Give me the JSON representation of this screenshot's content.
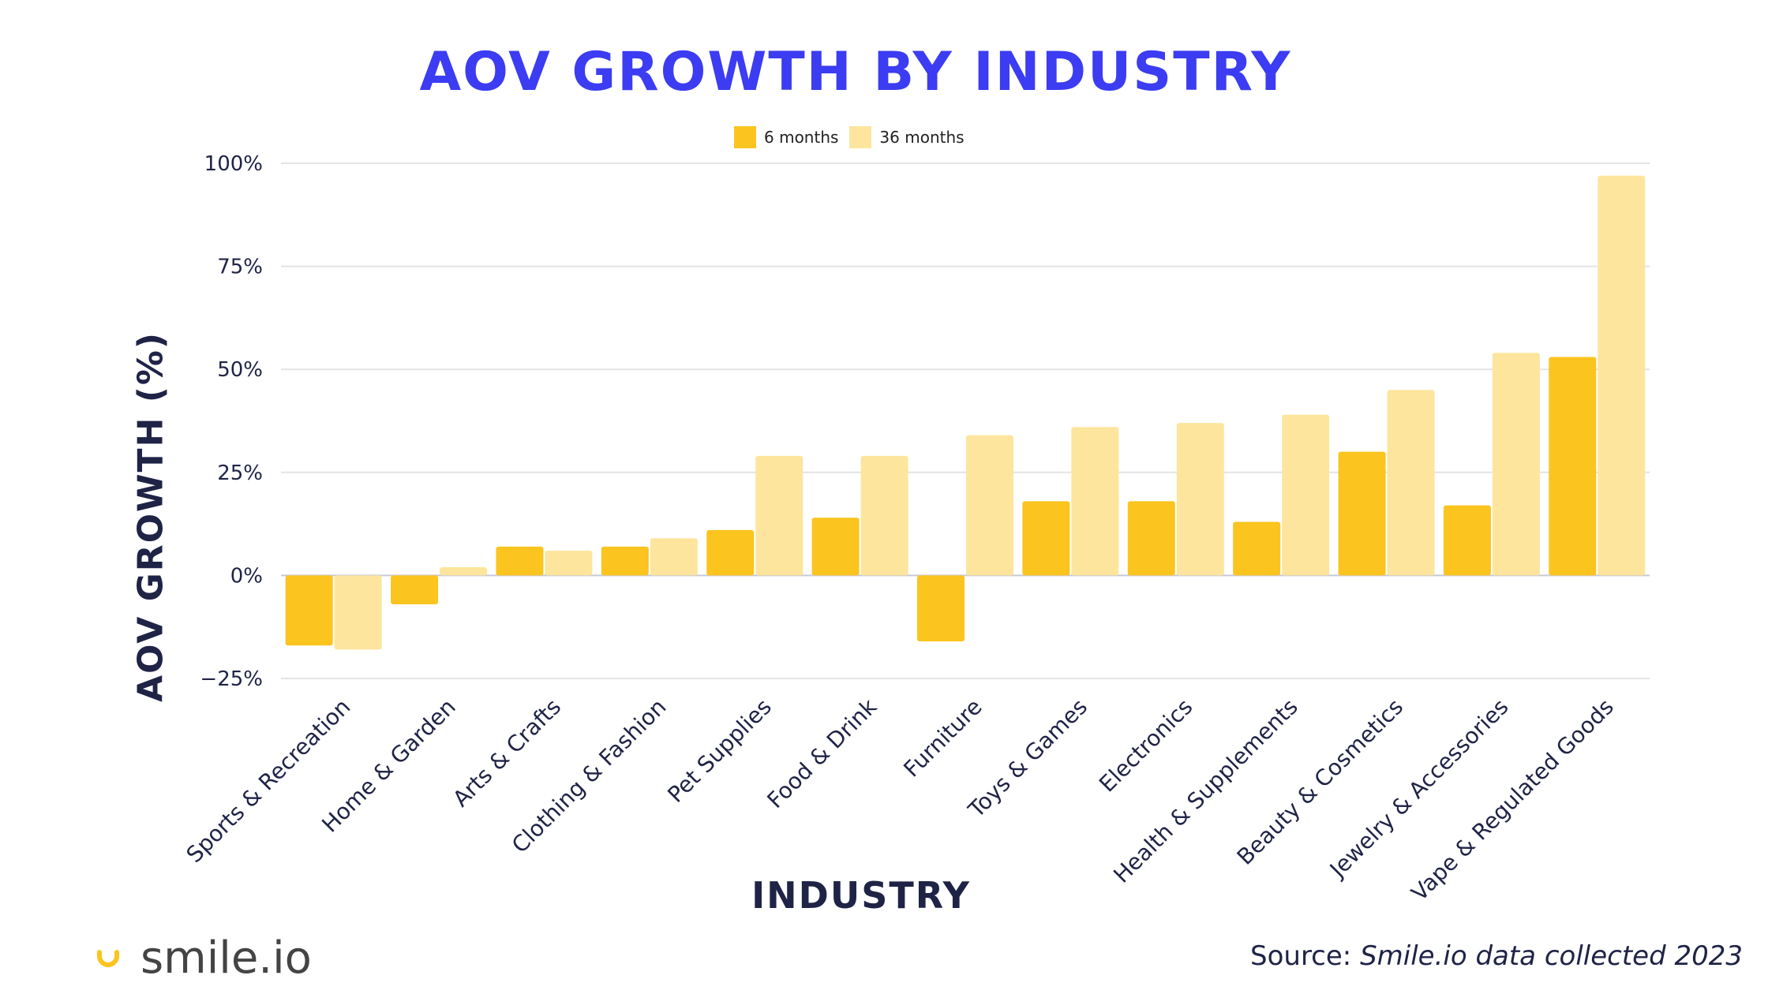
{
  "chart_data": {
    "type": "bar",
    "title": "AOV GROWTH BY INDUSTRY",
    "xlabel": "INDUSTRY",
    "ylabel": "AOV GROWTH (%)",
    "ylim": [
      -25,
      100
    ],
    "yticks": [
      "100%",
      "75%",
      "50%",
      "25%",
      "0%",
      "−25%"
    ],
    "ytick_values": [
      100,
      75,
      50,
      25,
      0,
      -25
    ],
    "grid": true,
    "legend_position": "top-center",
    "categories": [
      "Sports & Recreation",
      "Home & Garden",
      "Arts & Crafts",
      "Clothing & Fashion",
      "Pet Supplies",
      "Food & Drink",
      "Furniture",
      "Toys & Games",
      "Electronics",
      "Health & Supplements",
      "Beauty & Cosmetics",
      "Jewelry & Accessories",
      "Vape & Regulated Goods"
    ],
    "series": [
      {
        "name": "6 months",
        "color": "#fbc41e",
        "values": [
          -17,
          -7,
          7,
          7,
          11,
          14,
          -16,
          18,
          18,
          13,
          30,
          17,
          53
        ]
      },
      {
        "name": "36 months",
        "color": "#fde59d",
        "values": [
          -18,
          2,
          6,
          9,
          29,
          29,
          34,
          36,
          37,
          39,
          45,
          54,
          97
        ]
      }
    ]
  },
  "branding": {
    "logo_text": "smile.io",
    "logo_color": "#fbc41e"
  },
  "source": {
    "prefix": "Source: ",
    "text": "Smile.io data collected 2023"
  }
}
